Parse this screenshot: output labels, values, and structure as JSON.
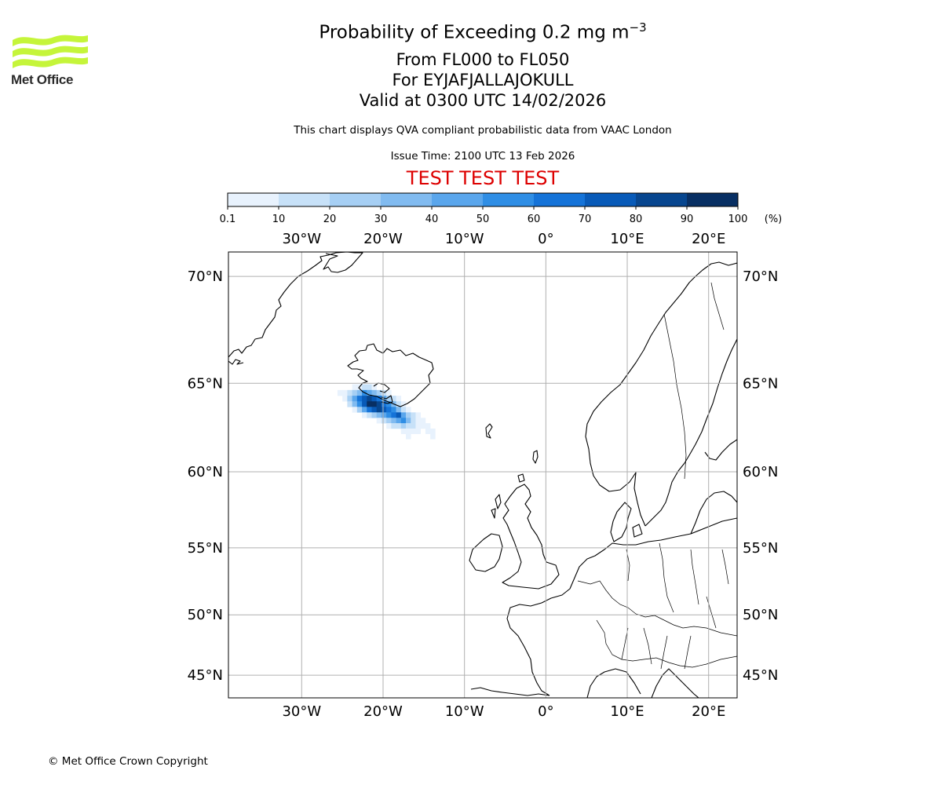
{
  "header": {
    "logo_text": "Met Office",
    "title_prefix": "Probability of Exceeding 0.2 mg m",
    "title_superscript": "−3",
    "levels": "From FL000 to FL050",
    "volcano": "For EYJAFJALLAJOKULL",
    "valid": "Valid at 0300 UTC 14/02/2026",
    "subtitle": "This chart displays QVA compliant probabilistic data from VAAC London",
    "issue_time": "Issue Time: 2100 UTC 13 Feb 2026",
    "test_banner": "TEST TEST TEST"
  },
  "colorbar": {
    "bounds": [
      "0.1",
      "10",
      "20",
      "30",
      "40",
      "50",
      "60",
      "70",
      "80",
      "90",
      "100"
    ],
    "colors": [
      "#e8f2fd",
      "#c7e1f8",
      "#a6cff4",
      "#81bbf0",
      "#5aa6ec",
      "#2f8ee5",
      "#1573d8",
      "#085ab8",
      "#07468f",
      "#082f63"
    ],
    "unit": "(%)"
  },
  "map": {
    "lon_ticks": [
      "30°W",
      "20°W",
      "10°W",
      "0°",
      "10°E",
      "20°E"
    ],
    "lon_values": [
      -30,
      -20,
      -10,
      0,
      10,
      20
    ],
    "lat_ticks": [
      "70°N",
      "65°N",
      "60°N",
      "55°N",
      "50°N",
      "45°N"
    ],
    "lat_values": [
      70,
      65,
      60,
      55,
      50,
      45
    ],
    "lon_range": [
      -39,
      23.5
    ],
    "lat_range": [
      43,
      71
    ],
    "ash_cells": [
      {
        "lon": -23.5,
        "lat": 64.8,
        "p": 5
      },
      {
        "lon": -22.9,
        "lat": 64.8,
        "p": 8
      },
      {
        "lon": -22.3,
        "lat": 64.8,
        "p": 12
      },
      {
        "lon": -21.7,
        "lat": 64.8,
        "p": 12
      },
      {
        "lon": -21.1,
        "lat": 64.8,
        "p": 8
      },
      {
        "lon": -25.3,
        "lat": 64.5,
        "p": 5
      },
      {
        "lon": -24.7,
        "lat": 64.5,
        "p": 8
      },
      {
        "lon": -24.1,
        "lat": 64.5,
        "p": 15
      },
      {
        "lon": -23.5,
        "lat": 64.5,
        "p": 25
      },
      {
        "lon": -22.9,
        "lat": 64.5,
        "p": 35
      },
      {
        "lon": -22.3,
        "lat": 64.5,
        "p": 55
      },
      {
        "lon": -21.7,
        "lat": 64.5,
        "p": 45
      },
      {
        "lon": -21.1,
        "lat": 64.5,
        "p": 35
      },
      {
        "lon": -20.5,
        "lat": 64.5,
        "p": 25
      },
      {
        "lon": -19.9,
        "lat": 64.5,
        "p": 12
      },
      {
        "lon": -19.3,
        "lat": 64.5,
        "p": 5
      },
      {
        "lon": -24.7,
        "lat": 64.2,
        "p": 8
      },
      {
        "lon": -24.1,
        "lat": 64.2,
        "p": 25
      },
      {
        "lon": -23.5,
        "lat": 64.2,
        "p": 45
      },
      {
        "lon": -22.9,
        "lat": 64.2,
        "p": 65
      },
      {
        "lon": -22.3,
        "lat": 64.2,
        "p": 75
      },
      {
        "lon": -21.7,
        "lat": 64.2,
        "p": 85
      },
      {
        "lon": -21.1,
        "lat": 64.2,
        "p": 75
      },
      {
        "lon": -20.5,
        "lat": 64.2,
        "p": 65
      },
      {
        "lon": -19.9,
        "lat": 64.2,
        "p": 45
      },
      {
        "lon": -19.3,
        "lat": 64.2,
        "p": 25
      },
      {
        "lon": -18.7,
        "lat": 64.2,
        "p": 12
      },
      {
        "lon": -18.1,
        "lat": 64.2,
        "p": 5
      },
      {
        "lon": -24.1,
        "lat": 63.9,
        "p": 12
      },
      {
        "lon": -23.5,
        "lat": 63.9,
        "p": 35
      },
      {
        "lon": -22.9,
        "lat": 63.9,
        "p": 55
      },
      {
        "lon": -22.3,
        "lat": 63.9,
        "p": 75
      },
      {
        "lon": -21.7,
        "lat": 63.9,
        "p": 95
      },
      {
        "lon": -21.1,
        "lat": 63.9,
        "p": 95
      },
      {
        "lon": -20.5,
        "lat": 63.9,
        "p": 85
      },
      {
        "lon": -19.9,
        "lat": 63.9,
        "p": 65
      },
      {
        "lon": -19.3,
        "lat": 63.9,
        "p": 55
      },
      {
        "lon": -18.7,
        "lat": 63.9,
        "p": 35
      },
      {
        "lon": -18.1,
        "lat": 63.9,
        "p": 15
      },
      {
        "lon": -17.5,
        "lat": 63.9,
        "p": 5
      },
      {
        "lon": -23.5,
        "lat": 63.6,
        "p": 8
      },
      {
        "lon": -22.9,
        "lat": 63.6,
        "p": 25
      },
      {
        "lon": -22.3,
        "lat": 63.6,
        "p": 45
      },
      {
        "lon": -21.7,
        "lat": 63.6,
        "p": 65
      },
      {
        "lon": -21.1,
        "lat": 63.6,
        "p": 75
      },
      {
        "lon": -20.5,
        "lat": 63.6,
        "p": 85
      },
      {
        "lon": -19.9,
        "lat": 63.6,
        "p": 75
      },
      {
        "lon": -19.3,
        "lat": 63.6,
        "p": 65
      },
      {
        "lon": -18.7,
        "lat": 63.6,
        "p": 55
      },
      {
        "lon": -18.1,
        "lat": 63.6,
        "p": 35
      },
      {
        "lon": -17.5,
        "lat": 63.6,
        "p": 15
      },
      {
        "lon": -16.9,
        "lat": 63.6,
        "p": 5
      },
      {
        "lon": -22.3,
        "lat": 63.3,
        "p": 8
      },
      {
        "lon": -21.7,
        "lat": 63.3,
        "p": 15
      },
      {
        "lon": -21.1,
        "lat": 63.3,
        "p": 25
      },
      {
        "lon": -20.5,
        "lat": 63.3,
        "p": 35
      },
      {
        "lon": -19.9,
        "lat": 63.3,
        "p": 45
      },
      {
        "lon": -19.3,
        "lat": 63.3,
        "p": 55
      },
      {
        "lon": -18.7,
        "lat": 63.3,
        "p": 65
      },
      {
        "lon": -18.1,
        "lat": 63.3,
        "p": 75
      },
      {
        "lon": -17.5,
        "lat": 63.3,
        "p": 45
      },
      {
        "lon": -16.9,
        "lat": 63.3,
        "p": 25
      },
      {
        "lon": -16.3,
        "lat": 63.3,
        "p": 12
      },
      {
        "lon": -15.7,
        "lat": 63.3,
        "p": 5
      },
      {
        "lon": -20.5,
        "lat": 63.0,
        "p": 5
      },
      {
        "lon": -19.9,
        "lat": 63.0,
        "p": 12
      },
      {
        "lon": -19.3,
        "lat": 63.0,
        "p": 25
      },
      {
        "lon": -18.7,
        "lat": 63.0,
        "p": 35
      },
      {
        "lon": -18.1,
        "lat": 63.0,
        "p": 45
      },
      {
        "lon": -17.5,
        "lat": 63.0,
        "p": 55
      },
      {
        "lon": -16.9,
        "lat": 63.0,
        "p": 35
      },
      {
        "lon": -16.3,
        "lat": 63.0,
        "p": 15
      },
      {
        "lon": -15.7,
        "lat": 63.0,
        "p": 8
      },
      {
        "lon": -15.1,
        "lat": 63.0,
        "p": 5
      },
      {
        "lon": -19.3,
        "lat": 62.7,
        "p": 5
      },
      {
        "lon": -18.7,
        "lat": 62.7,
        "p": 12
      },
      {
        "lon": -18.1,
        "lat": 62.7,
        "p": 15
      },
      {
        "lon": -17.5,
        "lat": 62.7,
        "p": 25
      },
      {
        "lon": -16.9,
        "lat": 62.7,
        "p": 15
      },
      {
        "lon": -16.3,
        "lat": 62.7,
        "p": 12
      },
      {
        "lon": -15.7,
        "lat": 62.7,
        "p": 8
      },
      {
        "lon": -15.1,
        "lat": 62.7,
        "p": 5
      },
      {
        "lon": -14.5,
        "lat": 62.7,
        "p": 5
      },
      {
        "lon": -17.5,
        "lat": 62.4,
        "p": 5
      },
      {
        "lon": -16.9,
        "lat": 62.4,
        "p": 8
      },
      {
        "lon": -16.3,
        "lat": 62.4,
        "p": 5
      },
      {
        "lon": -15.7,
        "lat": 62.4,
        "p": 5
      },
      {
        "lon": -14.5,
        "lat": 62.4,
        "p": 5
      },
      {
        "lon": -13.9,
        "lat": 62.4,
        "p": 5
      },
      {
        "lon": -16.9,
        "lat": 62.1,
        "p": 5
      },
      {
        "lon": -13.9,
        "lat": 62.1,
        "p": 5
      }
    ]
  },
  "footer": {
    "copyright": "© Met Office Crown Copyright"
  }
}
